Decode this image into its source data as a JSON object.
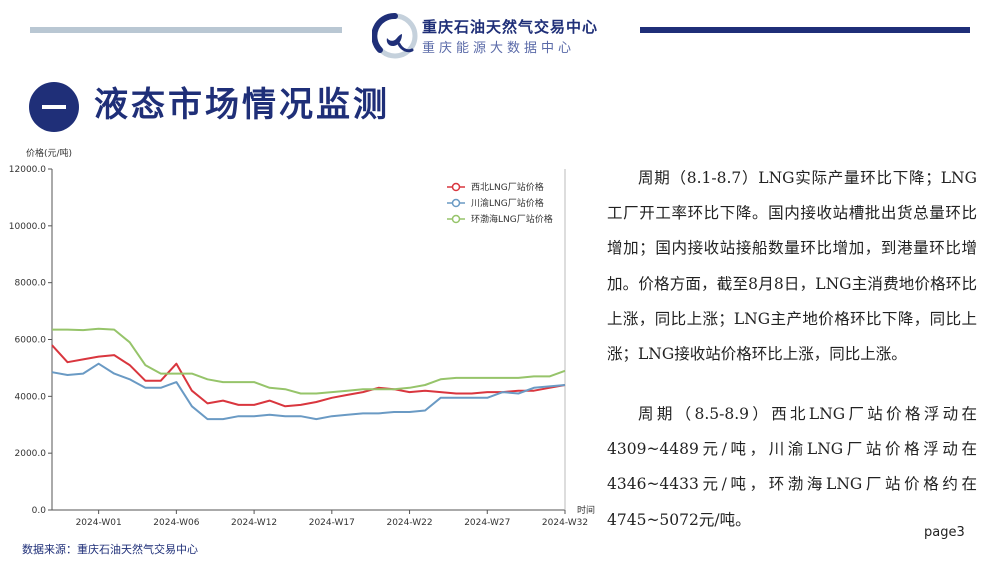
{
  "header": {
    "org_name": "重庆石油天然气交易中心",
    "sub_name": "重庆能源大数据中心",
    "logo_icon": "oil-drop-logo-icon",
    "accent_color": "#1f2f78",
    "light_color": "#b9c7d3"
  },
  "section": {
    "number_icon": "dash-icon",
    "title": "液态市场情况监测"
  },
  "chart_data": {
    "type": "line",
    "title": "",
    "ylabel": "价格(元/吨)",
    "xlabel": "时间",
    "ylim": [
      0,
      12000
    ],
    "yticks": [
      "0.0",
      "2000.0",
      "4000.0",
      "6000.0",
      "8000.0",
      "10000.0",
      "12000.0"
    ],
    "ytick_values": [
      0,
      2000,
      4000,
      6000,
      8000,
      10000,
      12000
    ],
    "xticks": [
      "2024-W01",
      "2024-W06",
      "2024-W12",
      "2024-W17",
      "2024-W22",
      "2024-W27",
      "2024-W32"
    ],
    "xtick_index": [
      3,
      8,
      13,
      18,
      23,
      28,
      33
    ],
    "legend_position": "top-right",
    "grid": false,
    "series": [
      {
        "name": "西北LNG厂站价格",
        "color": "#d9363e",
        "values": [
          5800,
          5200,
          5300,
          5400,
          5450,
          5100,
          4550,
          4550,
          5150,
          4200,
          3750,
          3850,
          3700,
          3700,
          3850,
          3650,
          3700,
          3800,
          3950,
          4050,
          4150,
          4300,
          4250,
          4150,
          4200,
          4150,
          4100,
          4100,
          4150,
          4150,
          4200,
          4200,
          4300,
          4400
        ]
      },
      {
        "name": "川渝LNG厂站价格",
        "color": "#6a9ac4",
        "values": [
          4850,
          4750,
          4800,
          5150,
          4800,
          4600,
          4300,
          4300,
          4500,
          3650,
          3200,
          3200,
          3300,
          3300,
          3350,
          3300,
          3300,
          3200,
          3300,
          3350,
          3400,
          3400,
          3450,
          3450,
          3500,
          3950,
          3950,
          3950,
          3950,
          4150,
          4100,
          4300,
          4350,
          4400
        ]
      },
      {
        "name": "环渤海LNG厂站价格",
        "color": "#96c46a",
        "values": [
          6350,
          6350,
          6330,
          6380,
          6350,
          5900,
          5100,
          4800,
          4800,
          4800,
          4600,
          4500,
          4500,
          4500,
          4300,
          4250,
          4100,
          4100,
          4150,
          4200,
          4250,
          4250,
          4250,
          4300,
          4400,
          4600,
          4650,
          4650,
          4650,
          4650,
          4650,
          4700,
          4700,
          4900
        ]
      }
    ]
  },
  "text": {
    "p1": "周期（8.1-8.7）LNG实际产量环比下降；LNG工厂开工率环比下降。国内接收站槽批出货总量环比增加；国内接收站接船数量环比增加，到港量环比增加。价格方面，截至8月8日，LNG主消费地价格环比上涨，同比上涨；LNG主产地价格环比下降，同比上涨；LNG接收站价格环比上涨，同比上涨。",
    "p2": "周期（8.5-8.9）西北LNG厂站价格浮动在4309~4489元/吨，川渝LNG厂站价格浮动在4346~4433元/吨，环渤海LNG厂站价格约在4745~5072元/吨。"
  },
  "footer": {
    "source": "数据来源：重庆石油天然气交易中心",
    "page": "page3"
  }
}
